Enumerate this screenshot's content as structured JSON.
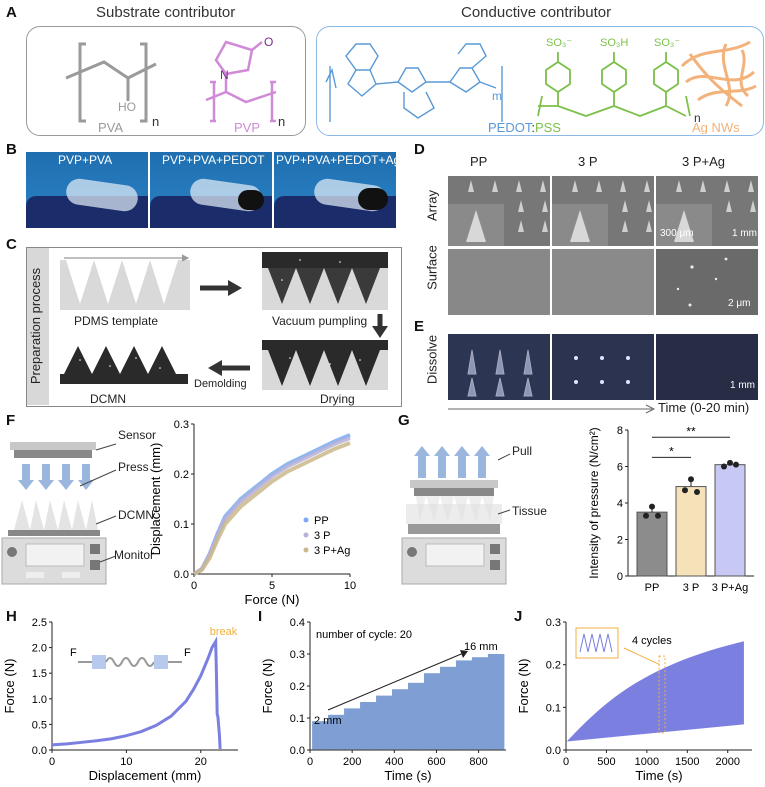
{
  "panels": {
    "A": "A",
    "B": "B",
    "C": "C",
    "D": "D",
    "E": "E",
    "F": "F",
    "G": "G",
    "H": "H",
    "I": "I",
    "J": "J"
  },
  "panelA": {
    "substrate_title": "Substrate contributor",
    "conductive_title": "Conductive contributor",
    "pva": {
      "label": "PVA",
      "sub": "n",
      "ho": "HO"
    },
    "pvp": {
      "label": "PVP",
      "sub": "n",
      "n_atom": "N",
      "o_atom": "O"
    },
    "pedot": {
      "label": "PEDOT",
      "sub": "m"
    },
    "pss": {
      "label": "PSS",
      "sub": "n",
      "so3_1": "SO₃⁻",
      "so3_2": "SO₃H",
      "so3_3": "SO₃⁻"
    },
    "pedot_pss_sep": ":",
    "agnws": {
      "label": "Ag NWs"
    },
    "colors": {
      "pva": "#9a9a9a",
      "pvp": "#d08ad8",
      "pedot": "#5a9ad6",
      "pss": "#7cc04a",
      "ag": "#f3b27a"
    }
  },
  "panelB": {
    "photo_labels": [
      "PVP+PVA",
      "PVP+PVA+PEDOT",
      "PVP+PVA+PEDOT+Ag"
    ]
  },
  "panelC": {
    "side_label": "Preparation process",
    "steps": {
      "template": "PDMS template",
      "vacuum": "Vacuum pumpling",
      "drying": "Drying",
      "dcmn": "DCMN"
    },
    "demolding": "Demolding"
  },
  "panelD": {
    "columns": [
      "PP",
      "3 P",
      "3 P+Ag"
    ],
    "rows": [
      "Array",
      "Surface"
    ],
    "scale_300": "300 μm",
    "scale_1mm": "1 mm",
    "scale_2um": "2 μm"
  },
  "panelE": {
    "row": "Dissolve",
    "scale": "1 mm",
    "time_axis": "Time (0-20 min)"
  },
  "panelF": {
    "labels": {
      "sensor": "Sensor",
      "press": "Press",
      "dcmn": "DCMN",
      "monitor": "Monitor"
    },
    "chart_data": {
      "type": "line",
      "xlabel": "Force (N)",
      "ylabel": "Displacement (mm)",
      "xlim": [
        0,
        10
      ],
      "ylim": [
        0,
        0.3
      ],
      "xticks": [
        0,
        5,
        10
      ],
      "yticks": [
        0.0,
        0.1,
        0.2,
        0.3
      ],
      "series": [
        {
          "name": "PP",
          "color": "#7aaaf0",
          "x": [
            0,
            0.5,
            1,
            1.5,
            2,
            3,
            4,
            5,
            6,
            7,
            8,
            9,
            10
          ],
          "y": [
            0,
            0.01,
            0.04,
            0.08,
            0.115,
            0.15,
            0.175,
            0.2,
            0.22,
            0.235,
            0.25,
            0.265,
            0.278
          ]
        },
        {
          "name": "3 P",
          "color": "#b7b0d8",
          "x": [
            0,
            0.5,
            1,
            1.5,
            2,
            3,
            4,
            5,
            6,
            7,
            8,
            9,
            10
          ],
          "y": [
            0,
            0.01,
            0.038,
            0.075,
            0.11,
            0.145,
            0.17,
            0.195,
            0.215,
            0.23,
            0.245,
            0.26,
            0.272
          ]
        },
        {
          "name": "3 P+Ag",
          "color": "#cbb98a",
          "x": [
            0,
            0.5,
            1,
            1.5,
            2,
            3,
            4,
            5,
            6,
            7,
            8,
            9,
            10
          ],
          "y": [
            0,
            0.008,
            0.032,
            0.068,
            0.1,
            0.135,
            0.16,
            0.185,
            0.205,
            0.22,
            0.235,
            0.25,
            0.262
          ]
        }
      ]
    }
  },
  "panelG": {
    "labels": {
      "pull": "Pull",
      "tissue": "Tissue"
    },
    "chart_data": {
      "type": "bar",
      "categories": [
        "PP",
        "3 P",
        "3 P+Ag"
      ],
      "values": [
        3.5,
        4.9,
        6.1
      ],
      "points": [
        [
          3.3,
          3.8,
          3.3
        ],
        [
          4.7,
          5.3,
          4.6
        ],
        [
          6.0,
          6.2,
          6.1
        ]
      ],
      "colors": [
        "#8c8c8c",
        "#f5e2b8",
        "#c8c8f4"
      ],
      "ylabel": "Intensity of pressure (N/cm²)",
      "ylim": [
        0,
        8
      ],
      "yticks": [
        0,
        2,
        4,
        6,
        8
      ],
      "sig": [
        "*",
        "**"
      ]
    }
  },
  "panelH": {
    "break_label": "break",
    "force_label": "F",
    "chart_data": {
      "type": "line",
      "xlabel": "Displacement (mm)",
      "ylabel": "Force (N)",
      "xlim": [
        0,
        25
      ],
      "ylim": [
        0,
        2.5
      ],
      "xticks": [
        0,
        10,
        20
      ],
      "yticks": [
        0.0,
        0.5,
        1.0,
        1.5,
        2.0,
        2.5
      ],
      "series": [
        {
          "name": "stretch",
          "color": "#7b7fe0",
          "x": [
            0,
            2,
            4,
            6,
            8,
            10,
            12,
            14,
            16,
            18,
            19,
            20,
            21,
            21.5,
            22,
            22.1,
            22.2,
            22.3,
            22.5,
            22.6
          ],
          "y": [
            0.1,
            0.12,
            0.15,
            0.18,
            0.22,
            0.28,
            0.36,
            0.48,
            0.66,
            0.95,
            1.18,
            1.45,
            1.8,
            2.0,
            2.12,
            1.5,
            0.7,
            0.65,
            0.3,
            0.02
          ]
        }
      ]
    }
  },
  "panelI": {
    "cycle_text": "number of cycle: 20",
    "start_label": "2 mm",
    "end_label": "16 mm",
    "chart_data": {
      "type": "area",
      "xlabel": "Time (s)",
      "ylabel": "Force (N)",
      "xlim": [
        0,
        930
      ],
      "ylim": [
        0,
        0.4
      ],
      "xticks": [
        0,
        200,
        400,
        600,
        800
      ],
      "yticks": [
        0.0,
        0.1,
        0.2,
        0.3,
        0.4
      ],
      "step_upper": [
        0.09,
        0.11,
        0.13,
        0.15,
        0.17,
        0.19,
        0.21,
        0.24,
        0.26,
        0.28,
        0.29,
        0.3
      ],
      "color": "#7f9ed4"
    }
  },
  "panelJ": {
    "inset_label": "4 cycles",
    "chart_data": {
      "type": "area",
      "xlabel": "Time (s)",
      "ylabel": "Force (N)",
      "xlim": [
        0,
        2300
      ],
      "ylim": [
        0,
        0.3
      ],
      "xticks": [
        0,
        500,
        1000,
        1500,
        2000
      ],
      "yticks": [
        0.0,
        0.1,
        0.2,
        0.3
      ],
      "upper_start": 0.12,
      "upper_end": 0.255,
      "lower_start": 0.02,
      "lower_end": 0.06,
      "color": "#7b7fe0"
    }
  }
}
